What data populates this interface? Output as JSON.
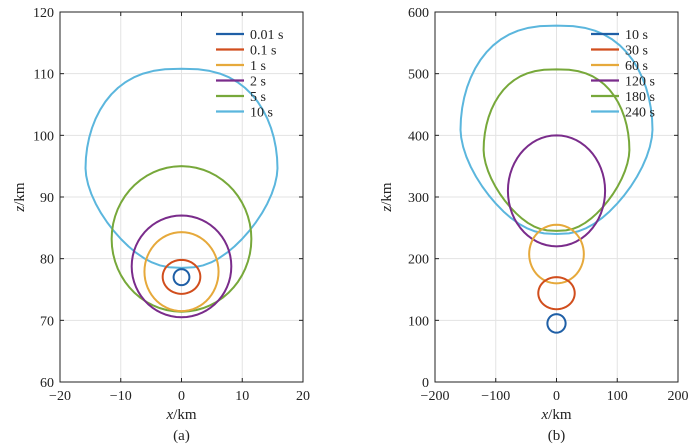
{
  "chart_data": [
    {
      "type": "line",
      "panel_label": "(a)",
      "xlabel_var": "x",
      "xlabel_unit": "/km",
      "ylabel_var": "z",
      "ylabel_unit": "/km",
      "xlim": [
        -20,
        20
      ],
      "ylim": [
        60,
        120
      ],
      "xticks": [
        -20,
        -10,
        0,
        10,
        20
      ],
      "yticks": [
        60,
        70,
        80,
        90,
        100,
        110,
        120
      ],
      "grid": true,
      "legend_position": "top-right",
      "series": [
        {
          "name": "0.01 s",
          "color": "#1f5fa6",
          "shape": "circle",
          "cx": 0,
          "rx": 1.3,
          "bottom": 75.7,
          "top": 78.3
        },
        {
          "name": "0.1 s",
          "color": "#d14e1d",
          "shape": "circle",
          "cx": 0,
          "rx": 3.1,
          "bottom": 74.3,
          "top": 79.8
        },
        {
          "name": "1 s",
          "color": "#e6a93b",
          "shape": "circle",
          "cx": 0,
          "rx": 6.1,
          "bottom": 71.5,
          "top": 84.3
        },
        {
          "name": "2 s",
          "color": "#7a2c8b",
          "shape": "circle",
          "cx": 0,
          "rx": 8.2,
          "bottom": 70.5,
          "top": 87.0
        },
        {
          "name": "5 s",
          "color": "#77a83a",
          "shape": "circle",
          "cx": 0,
          "rx": 11.5,
          "bottom": 71.4,
          "top": 95.0
        },
        {
          "name": "10 s",
          "color": "#5bb6dd",
          "shape": "bulb",
          "cx": 0,
          "rx": 15.8,
          "bottom": 78.5,
          "top": 110.8
        }
      ]
    },
    {
      "type": "line",
      "panel_label": "(b)",
      "xlabel_var": "x",
      "xlabel_unit": "/km",
      "ylabel_var": "z",
      "ylabel_unit": "/km",
      "xlim": [
        -200,
        200
      ],
      "ylim": [
        0,
        600
      ],
      "xticks": [
        -200,
        -100,
        0,
        100,
        200
      ],
      "yticks": [
        0,
        100,
        200,
        300,
        400,
        500,
        600
      ],
      "grid": true,
      "legend_position": "top-right",
      "series": [
        {
          "name": "10 s",
          "color": "#1f5fa6",
          "shape": "circle",
          "cx": 0,
          "rx": 15,
          "bottom": 80,
          "top": 110
        },
        {
          "name": "30 s",
          "color": "#d14e1d",
          "shape": "circle",
          "cx": 0,
          "rx": 30,
          "bottom": 118,
          "top": 170
        },
        {
          "name": "60 s",
          "color": "#e6a93b",
          "shape": "circle",
          "cx": 0,
          "rx": 45,
          "bottom": 160,
          "top": 255
        },
        {
          "name": "120 s",
          "color": "#7a2c8b",
          "shape": "circle",
          "cx": 0,
          "rx": 80,
          "bottom": 220,
          "top": 400
        },
        {
          "name": "180 s",
          "color": "#77a83a",
          "shape": "bulb",
          "cx": 0,
          "rx": 120,
          "bottom": 245,
          "top": 507
        },
        {
          "name": "240 s",
          "color": "#5bb6dd",
          "shape": "bulb",
          "cx": 0,
          "rx": 158,
          "bottom": 240,
          "top": 578
        }
      ]
    }
  ]
}
